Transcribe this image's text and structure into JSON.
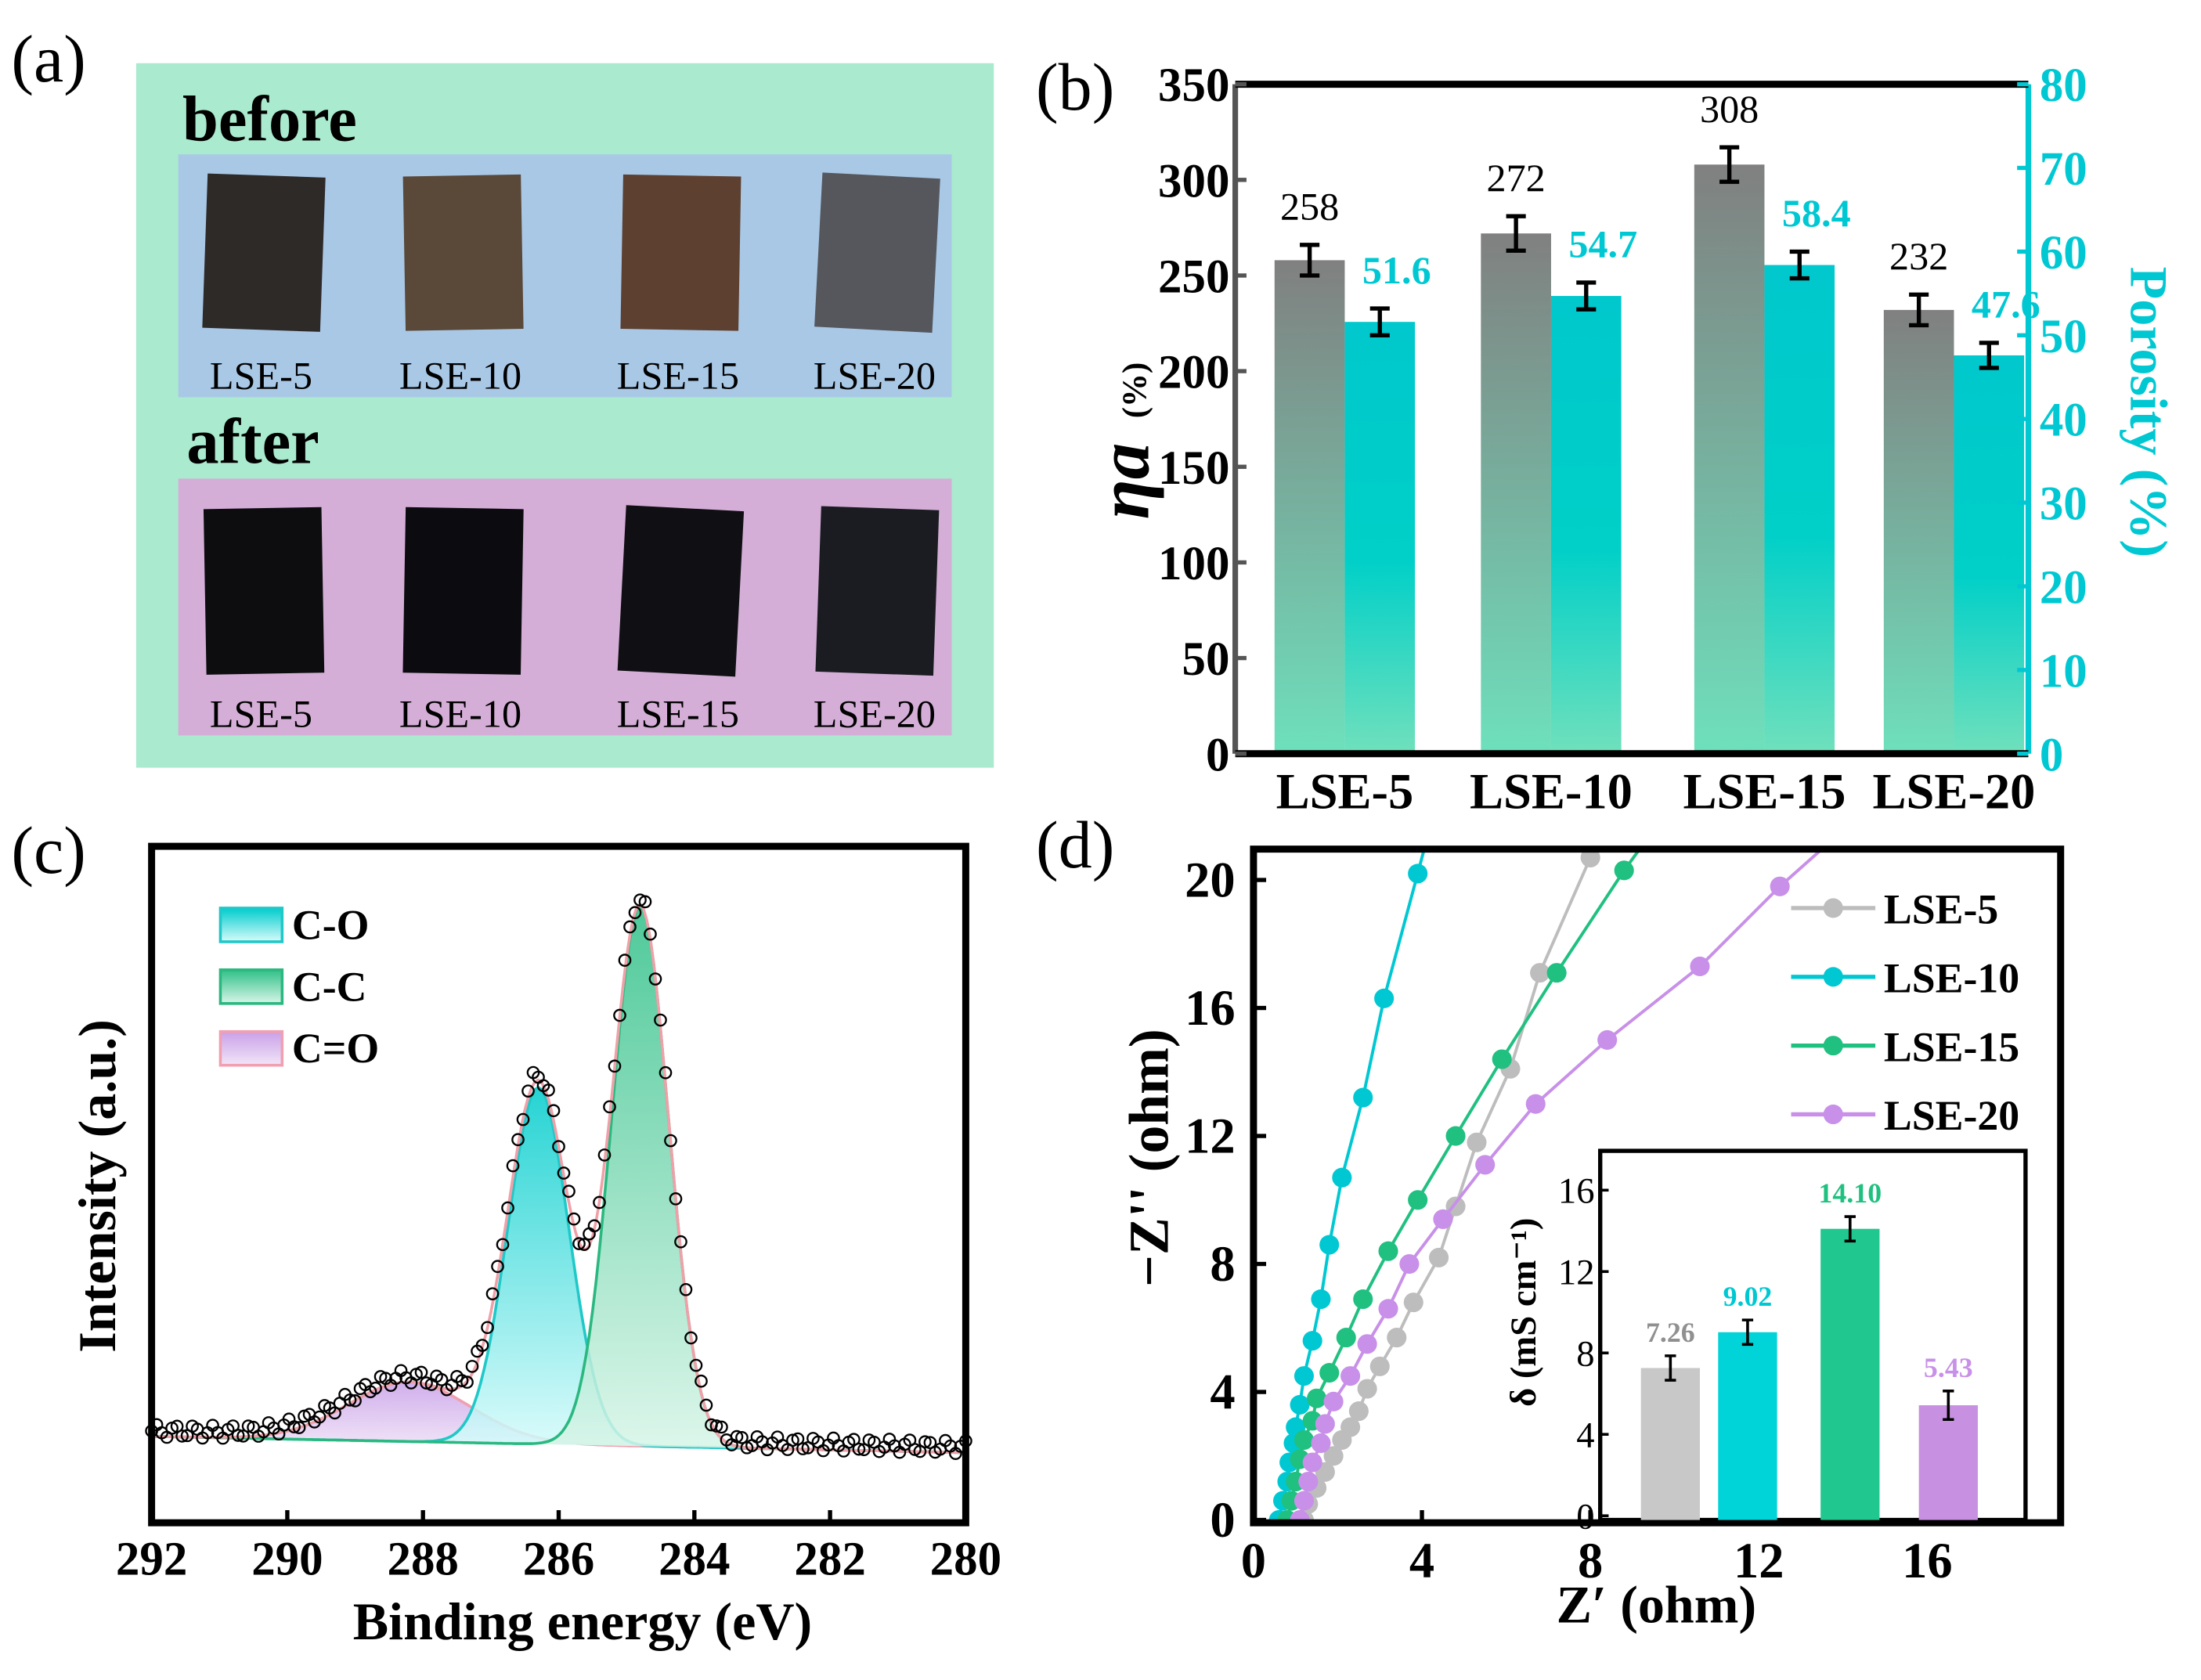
{
  "panel_labels": {
    "a": "(a)",
    "b": "(b)",
    "c": "(c)",
    "d": "(d)"
  },
  "panel_a": {
    "before_label": "before",
    "after_label": "after",
    "samples": [
      "LSE-5",
      "LSE-10",
      "LSE-15",
      "LSE-20"
    ],
    "colors": {
      "frame": "#aaeacf",
      "before_bg": "#a9c8e6",
      "after_bg": "#d4aed6"
    }
  },
  "chart_data": [
    {
      "id": "b",
      "type": "bar",
      "categories": [
        "LSE-5",
        "LSE-10",
        "LSE-15",
        "LSE-20"
      ],
      "series": [
        {
          "name": "ηa (%)",
          "axis": "left",
          "values": [
            258,
            272,
            308,
            232
          ],
          "errors": [
            8,
            9,
            9,
            8
          ],
          "value_labels": [
            "258",
            "272",
            "308",
            "232"
          ],
          "color": "#808080"
        },
        {
          "name": "Porosity (%)",
          "axis": "right",
          "values": [
            51.6,
            54.7,
            58.4,
            47.6
          ],
          "errors": [
            1.6,
            1.6,
            1.6,
            1.5
          ],
          "value_labels": [
            "51.6",
            "54.7",
            "58.4",
            "47.6"
          ],
          "color": "#00c8cc"
        }
      ],
      "ylabel": "ηa",
      "ylabel_unit": "(%)",
      "y2label": "Porosity (%)",
      "ylim": [
        0,
        350
      ],
      "y2lim": [
        0,
        80
      ],
      "yticks": [
        "0",
        "50",
        "100",
        "150",
        "200",
        "250",
        "300",
        "350"
      ],
      "y2ticks": [
        "0",
        "10",
        "20",
        "30",
        "40",
        "50",
        "60",
        "70",
        "80"
      ]
    },
    {
      "id": "c",
      "type": "area",
      "title": "",
      "xlabel": "Binding energy  (eV)",
      "ylabel": "Intensity (a.u.)",
      "xlim": [
        292,
        280
      ],
      "xticks": [
        "292",
        "290",
        "288",
        "286",
        "284",
        "282",
        "280"
      ],
      "components": [
        {
          "name": "C-O",
          "center": 286.3,
          "amplitude": 66,
          "sigma": 0.45,
          "color": "#00d0d0"
        },
        {
          "name": "C-C",
          "center": 284.8,
          "amplitude": 100,
          "sigma": 0.42,
          "color": "#3cc890"
        },
        {
          "name": "C=O",
          "center": 288.2,
          "amplitude": 11,
          "sigma": 0.9,
          "color": "#c9a0e0"
        }
      ],
      "background": {
        "at_292": 3,
        "at_280": 0
      },
      "legend": [
        "C-O",
        "C-C",
        "C=O"
      ],
      "legend_position": "top-left"
    },
    {
      "id": "d",
      "type": "line",
      "xlabel": "Z′ (ohm)",
      "ylabel": "−Z'' (ohm)",
      "xlim": [
        0,
        19.2
      ],
      "ylim": [
        0,
        21
      ],
      "xticks": [
        "0",
        "4",
        "8",
        "12",
        "16"
      ],
      "yticks": [
        "0",
        "4",
        "8",
        "12",
        "16",
        "20"
      ],
      "legend_position": "top-right",
      "series": [
        {
          "name": "LSE-5",
          "color": "#bdbdbd",
          "points": [
            [
              1.2,
              0
            ],
            [
              1.3,
              0.5
            ],
            [
              1.5,
              1.0
            ],
            [
              1.7,
              1.5
            ],
            [
              1.9,
              2.0
            ],
            [
              2.1,
              2.5
            ],
            [
              2.3,
              2.9
            ],
            [
              2.5,
              3.4
            ],
            [
              2.7,
              4.1
            ],
            [
              3.0,
              4.8
            ],
            [
              3.4,
              5.7
            ],
            [
              3.8,
              6.8
            ],
            [
              4.4,
              8.2
            ],
            [
              4.8,
              9.8
            ],
            [
              5.3,
              11.8
            ],
            [
              6.1,
              14.1
            ],
            [
              6.8,
              17.1
            ],
            [
              8.0,
              20.7
            ]
          ]
        },
        {
          "name": "LSE-10",
          "color": "#00c8d2",
          "points": [
            [
              0.6,
              0
            ],
            [
              0.7,
              0.6
            ],
            [
              0.8,
              1.2
            ],
            [
              0.85,
              1.8
            ],
            [
              0.95,
              2.4
            ],
            [
              1.0,
              2.9
            ],
            [
              1.1,
              3.6
            ],
            [
              1.2,
              4.5
            ],
            [
              1.4,
              5.6
            ],
            [
              1.6,
              6.9
            ],
            [
              1.8,
              8.6
            ],
            [
              2.1,
              10.7
            ],
            [
              2.6,
              13.2
            ],
            [
              3.1,
              16.3
            ],
            [
              3.9,
              20.2
            ],
            [
              4.1,
              21.2
            ]
          ]
        },
        {
          "name": "LSE-15",
          "color": "#20c080",
          "points": [
            [
              0.8,
              0
            ],
            [
              0.9,
              0.6
            ],
            [
              1.0,
              1.2
            ],
            [
              1.1,
              1.9
            ],
            [
              1.2,
              2.5
            ],
            [
              1.4,
              3.1
            ],
            [
              1.5,
              3.8
            ],
            [
              1.8,
              4.6
            ],
            [
              2.2,
              5.7
            ],
            [
              2.6,
              6.9
            ],
            [
              3.2,
              8.4
            ],
            [
              3.9,
              10.0
            ],
            [
              4.8,
              12.0
            ],
            [
              5.9,
              14.4
            ],
            [
              7.2,
              17.1
            ],
            [
              8.8,
              20.3
            ],
            [
              9.3,
              21.2
            ]
          ]
        },
        {
          "name": "LSE-20",
          "color": "#c890e8",
          "points": [
            [
              1.1,
              0
            ],
            [
              1.2,
              0.6
            ],
            [
              1.3,
              1.2
            ],
            [
              1.4,
              1.8
            ],
            [
              1.6,
              2.4
            ],
            [
              1.7,
              3.0
            ],
            [
              1.9,
              3.7
            ],
            [
              2.3,
              4.5
            ],
            [
              2.7,
              5.5
            ],
            [
              3.2,
              6.6
            ],
            [
              3.7,
              8.0
            ],
            [
              4.5,
              9.4
            ],
            [
              5.5,
              11.1
            ],
            [
              6.7,
              13.0
            ],
            [
              8.4,
              15.0
            ],
            [
              10.6,
              17.3
            ],
            [
              12.5,
              19.8
            ],
            [
              13.7,
              21.2
            ]
          ]
        }
      ]
    },
    {
      "id": "d_inset",
      "type": "bar",
      "categories": [
        "LSE-5",
        "LSE-10",
        "LSE-15",
        "LSE-20"
      ],
      "values": [
        7.26,
        9.02,
        14.1,
        5.43
      ],
      "value_labels": [
        "7.26",
        "9.02",
        "14.10",
        "5.43"
      ],
      "errors": [
        0.6,
        0.6,
        0.6,
        0.7
      ],
      "colors": [
        "#c8c8c8",
        "#00d4d8",
        "#20c890",
        "#c890e0"
      ],
      "label_colors": [
        "#909090",
        "#00c8d2",
        "#20c080",
        "#c890e8"
      ],
      "ylabel": "δ (mS cm⁻¹)",
      "ylim": [
        0,
        16.8
      ],
      "yticks": [
        "0",
        "4",
        "8",
        "12",
        "16"
      ]
    }
  ]
}
